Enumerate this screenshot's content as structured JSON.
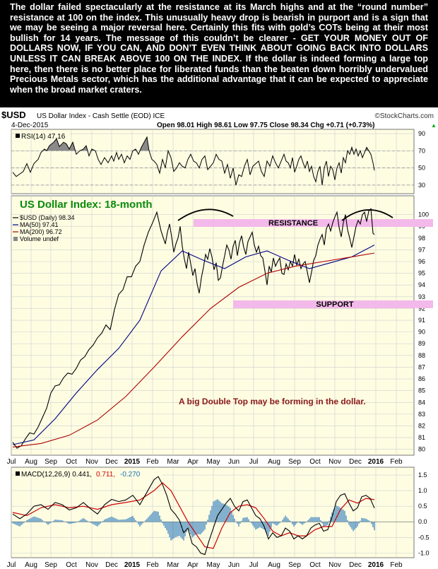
{
  "commentary": "The dollar failed spectacularly at the resistance at its March highs and at the “round number” resistance at 100 on the index. This unusually heavy drop is bearish in purport and is a sign that we may be seeing a major reversal here. Certainly this fits with gold’s COTs being at their most bullish for 14 years. The message of this couldn’t be clearer - GET YOUR MONEY OUT OF DOLLARS NOW, IF YOU CAN, AND DON’T EVEN THINK ABOUT GOING BACK INTO DOLLARS UNLESS IT CAN BREAK ABOVE 100 ON THE INDEX. If the dollar is indeed forming a large top here, then there is no better place for liberated funds than the beaten down horribly undervalued Precious Metals sector, which has the additional advantage that it can be expected to appreciate when the broad market craters.",
  "header": {
    "symbol": "$USD",
    "name": "US Dollar Index - Cash Settle (EOD) ICE",
    "source": "©StockCharts.com",
    "date": "4-Dec-2015",
    "ohlc": "Open 98.01  High 98.61  Low 97.75  Close 98.34  Chg +0.71 (+0.73%)",
    "ohlc_arrow": "▲"
  },
  "chart_data": [
    {
      "type": "line",
      "panel": "RSI",
      "legend": "RSI(14) 47.16",
      "ylim": [
        20,
        95
      ],
      "ticks": [
        30,
        50,
        70,
        90
      ],
      "series": [
        {
          "name": "RSI(14)",
          "x": [
            0,
            5,
            10,
            15,
            20,
            25,
            30,
            36,
            40,
            45,
            48,
            52,
            58,
            62,
            66,
            72,
            76,
            80,
            85,
            90,
            95,
            100,
            104,
            108,
            112,
            117,
            121,
            125,
            130,
            135,
            140,
            143,
            147,
            150,
            154,
            158,
            162,
            166,
            170,
            174,
            178,
            182,
            186,
            190,
            193,
            197,
            200,
            204,
            208,
            212,
            216,
            220,
            224,
            228,
            232,
            236,
            240,
            244,
            248,
            252,
            256,
            260,
            264,
            268,
            272,
            276,
            280,
            284,
            288,
            292,
            296,
            300,
            304,
            308,
            312,
            316,
            320,
            324,
            328,
            332,
            336,
            340,
            344,
            348,
            352,
            356,
            360,
            364,
            368,
            372,
            376,
            380,
            384,
            387,
            390,
            393,
            396,
            399,
            402,
            405,
            408,
            411,
            414,
            417,
            420,
            423,
            426,
            429,
            432,
            435,
            438,
            441,
            444,
            447,
            450,
            453,
            456,
            459,
            462,
            465,
            468,
            471,
            474,
            477,
            480,
            483,
            486,
            489,
            492,
            495,
            498,
            501,
            504,
            507,
            510,
            512
          ],
          "values": [
            45,
            40,
            43,
            46,
            55,
            45,
            55,
            60,
            68,
            72,
            70,
            76,
            80,
            84,
            75,
            80,
            78,
            72,
            80,
            66,
            70,
            72,
            76,
            64,
            72,
            70,
            60,
            54,
            62,
            56,
            64,
            58,
            68,
            60,
            66,
            56,
            64,
            60,
            70,
            72,
            66,
            74,
            80,
            86,
            70,
            60,
            58,
            54,
            44,
            60,
            50,
            70,
            62,
            46,
            50,
            56,
            52,
            50,
            60,
            66,
            58,
            56,
            50,
            60,
            64,
            48,
            52,
            56,
            66,
            60,
            58,
            44,
            54,
            38,
            50,
            30,
            42,
            40,
            52,
            60,
            42,
            52,
            55,
            58,
            46,
            40,
            58,
            52,
            64,
            56,
            50,
            58,
            66,
            58,
            56,
            50,
            62,
            45,
            52,
            60,
            64,
            56,
            50,
            58,
            46,
            52,
            40,
            34,
            46,
            52,
            30,
            50,
            58,
            40,
            52,
            48,
            36,
            50,
            56,
            44,
            62,
            56,
            70,
            66,
            74,
            66,
            72,
            64,
            70,
            62,
            68,
            74,
            70,
            66,
            56,
            47
          ]
        }
      ]
    },
    {
      "type": "line",
      "panel": "Price",
      "title": "US Dollar Index: 18-month",
      "legend": [
        "$USD (Daily) 98.34",
        "MA(50) 97.41",
        "MA(200) 96.72",
        "Volume undef"
      ],
      "ylim": [
        79.5,
        101.6
      ],
      "ticks": [
        80,
        81,
        82,
        83,
        84,
        85,
        86,
        87,
        88,
        89,
        90,
        91,
        92,
        93,
        94,
        95,
        96,
        97,
        98,
        99,
        100
      ],
      "annotations": [
        "RESISTANCE",
        "SUPPORT",
        "A big Double Top may be forming in the dollar."
      ],
      "series": [
        {
          "name": "$USD (Daily)",
          "x": [
            0,
            6,
            12,
            18,
            24,
            30,
            36,
            42,
            48,
            54,
            60,
            66,
            72,
            78,
            84,
            90,
            96,
            102,
            108,
            114,
            120,
            126,
            132,
            138,
            144,
            150,
            156,
            162,
            168,
            174,
            180,
            186,
            192,
            198,
            204,
            210,
            216,
            219,
            222,
            225,
            228,
            231,
            234,
            237,
            240,
            243,
            246,
            249,
            252,
            255,
            258,
            261,
            264,
            267,
            270,
            273,
            276,
            279,
            282,
            285,
            288,
            291,
            294,
            297,
            300,
            303,
            306,
            309,
            312,
            315,
            318,
            321,
            324,
            327,
            330,
            333,
            336,
            339,
            342,
            345,
            348,
            351,
            354,
            357,
            360,
            363,
            366,
            369,
            372,
            375,
            378,
            381,
            384,
            387,
            390,
            393,
            396,
            399,
            402,
            405,
            408,
            411,
            414,
            417,
            420,
            423,
            426,
            429,
            432,
            435,
            438,
            441,
            444,
            447,
            450,
            453,
            456,
            459,
            462,
            465,
            468,
            471,
            474,
            477,
            480,
            483,
            486,
            489,
            492,
            495,
            498,
            501,
            504,
            507,
            510,
            512
          ],
          "values": [
            80.6,
            80.1,
            80.3,
            80.9,
            81.4,
            81.3,
            81.9,
            82.7,
            83.5,
            84.8,
            85.4,
            85.5,
            86.1,
            86.5,
            86.4,
            86.9,
            87.6,
            87.9,
            88.5,
            88.9,
            89.5,
            89.9,
            90.6,
            90.2,
            91.9,
            93.2,
            93.6,
            94.7,
            94.7,
            95.6,
            96.0,
            97.4,
            98.5,
            99.3,
            100.2,
            98.6,
            97.5,
            98.5,
            99.2,
            98.1,
            96.8,
            97.5,
            98.0,
            99.0,
            97.3,
            96.2,
            95.4,
            96.8,
            95.8,
            94.8,
            95.4,
            94.1,
            93.3,
            94.6,
            95.5,
            96.6,
            96.2,
            97.1,
            96.4,
            95.3,
            95.9,
            94.4,
            94.6,
            95.6,
            96.5,
            97.4,
            97.0,
            96.2,
            97.3,
            97.8,
            96.5,
            97.6,
            98.2,
            97.2,
            96.6,
            97.7,
            98.1,
            98.5,
            97.4,
            96.8,
            97.3,
            96.5,
            96.3,
            95.2,
            94.0,
            95.6,
            95.1,
            96.3,
            95.6,
            96.0,
            96.3,
            95.0,
            94.9,
            95.8,
            95.3,
            96.0,
            95.6,
            96.6,
            95.7,
            96.2,
            95.4,
            95.8,
            96.0,
            95.1,
            94.2,
            95.1,
            96.1,
            96.5,
            97.4,
            97.9,
            98.3,
            97.4,
            98.8,
            99.2,
            98.6,
            99.3,
            99.8,
            100.2,
            98.9,
            98.1,
            99.3,
            100.0,
            98.7,
            98.0,
            97.2,
            98.1,
            99.0,
            99.5,
            99.2,
            100.0,
            100.2,
            99.4,
            100.3,
            100.5,
            98.4,
            98.3
          ],
          "color": "#000000"
        },
        {
          "name": "MA(50)",
          "x": [
            0,
            30,
            60,
            90,
            120,
            150,
            180,
            210,
            240,
            270,
            300,
            330,
            360,
            390,
            420,
            450,
            480,
            512
          ],
          "values": [
            80.4,
            80.8,
            82.6,
            84.8,
            86.8,
            88.6,
            91.0,
            95.2,
            96.9,
            96.1,
            95.4,
            96.4,
            96.9,
            96.1,
            95.4,
            95.9,
            96.4,
            97.41
          ],
          "color": "#000080"
        },
        {
          "name": "MA(200)",
          "x": [
            0,
            40,
            80,
            120,
            160,
            200,
            240,
            280,
            320,
            360,
            400,
            440,
            480,
            512
          ],
          "values": [
            80.2,
            80.5,
            81.2,
            82.5,
            84.5,
            87.0,
            89.6,
            92.0,
            93.8,
            95.0,
            95.6,
            96.0,
            96.4,
            96.72
          ],
          "color": "#aa0000"
        }
      ]
    },
    {
      "type": "line",
      "panel": "MACD",
      "legend": [
        "MACD(12,26,9) 0.441,",
        "0.711,",
        "-0.270"
      ],
      "ylim": [
        -1.15,
        1.75
      ],
      "ticks": [
        -1.0,
        -0.5,
        0.0,
        0.5,
        1.0,
        1.5
      ],
      "series": [
        {
          "name": "MACD",
          "x": [
            0,
            10,
            20,
            30,
            40,
            50,
            60,
            70,
            80,
            90,
            100,
            110,
            120,
            130,
            140,
            150,
            160,
            170,
            180,
            190,
            200,
            206,
            212,
            218,
            224,
            230,
            236,
            242,
            248,
            254,
            260,
            266,
            272,
            278,
            284,
            290,
            296,
            302,
            308,
            314,
            320,
            326,
            332,
            338,
            344,
            350,
            356,
            362,
            368,
            374,
            380,
            386,
            392,
            398,
            404,
            410,
            416,
            422,
            428,
            434,
            440,
            446,
            452,
            458,
            464,
            470,
            476,
            482,
            488,
            494,
            500,
            506,
            512
          ],
          "values": [
            0.25,
            0.1,
            0.25,
            0.5,
            0.55,
            0.4,
            0.62,
            0.55,
            0.38,
            0.45,
            0.62,
            0.42,
            0.25,
            0.55,
            0.72,
            0.65,
            0.7,
            0.85,
            0.55,
            0.95,
            1.35,
            1.45,
            1.2,
            0.85,
            0.4,
            0.25,
            0.05,
            -0.35,
            -0.2,
            -0.7,
            -0.8,
            -1.0,
            -1.05,
            -0.6,
            -0.2,
            0.2,
            0.4,
            0.6,
            0.75,
            0.5,
            0.35,
            0.65,
            0.7,
            0.45,
            0.2,
            0.1,
            -0.15,
            -0.55,
            -0.35,
            -0.5,
            -0.45,
            -0.2,
            -0.3,
            -0.55,
            -0.45,
            -0.55,
            -0.45,
            -0.2,
            -0.1,
            -0.05,
            -0.3,
            -0.25,
            0.15,
            0.65,
            0.85,
            0.9,
            0.6,
            0.35,
            0.45,
            0.8,
            0.85,
            0.75,
            0.44
          ],
          "color": "#000000"
        },
        {
          "name": "Signal",
          "x": [
            0,
            20,
            40,
            60,
            80,
            100,
            120,
            140,
            160,
            180,
            200,
            212,
            224,
            236,
            248,
            260,
            272,
            284,
            296,
            308,
            320,
            332,
            344,
            356,
            368,
            380,
            392,
            404,
            416,
            428,
            440,
            452,
            464,
            476,
            488,
            500,
            512
          ],
          "values": [
            0.3,
            0.2,
            0.45,
            0.55,
            0.45,
            0.5,
            0.4,
            0.55,
            0.62,
            0.7,
            1.0,
            1.25,
            1.0,
            0.5,
            0.0,
            -0.4,
            -0.8,
            -0.85,
            -0.2,
            0.3,
            0.5,
            0.55,
            0.45,
            0.1,
            -0.3,
            -0.45,
            -0.35,
            -0.45,
            -0.45,
            -0.25,
            -0.15,
            -0.15,
            0.4,
            0.7,
            0.6,
            0.75,
            0.711
          ],
          "color": "#cc0000"
        }
      ]
    }
  ],
  "xaxis": {
    "labels": [
      "Jul",
      "Aug",
      "Sep",
      "Oct",
      "Nov",
      "Dec",
      "2015",
      "Feb",
      "Mar",
      "Apr",
      "May",
      "Jun",
      "Jul",
      "Aug",
      "Sep",
      "Oct",
      "Nov",
      "Dec",
      "2016",
      "Feb"
    ],
    "positions": [
      16,
      44,
      72,
      101,
      130,
      158,
      187,
      216,
      245,
      273,
      302,
      331,
      359,
      388,
      417,
      446,
      474,
      503,
      532,
      561
    ]
  },
  "colors": {
    "panel_bg": "#fefde2",
    "band": "#f3b9ea",
    "text_red": "#8b1a1a",
    "title_green": "#0b8a0b",
    "grid": "#c8c8c8"
  }
}
